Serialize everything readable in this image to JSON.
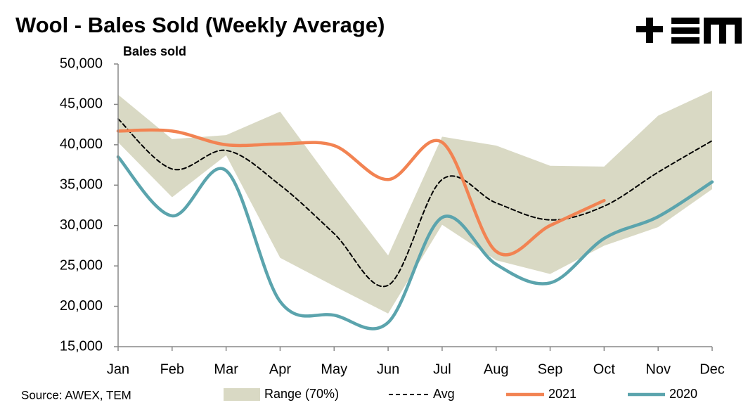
{
  "chart_data": {
    "type": "line",
    "title": "Wool - Bales Sold (Weekly Average)",
    "y_label": "Bales sold",
    "source": "Source: AWEX, TEM",
    "categories": [
      "Jan",
      "Feb",
      "Mar",
      "Apr",
      "May",
      "Jun",
      "Jul",
      "Aug",
      "Sep",
      "Oct",
      "Nov",
      "Dec"
    ],
    "ylim": [
      15000,
      50000
    ],
    "yticks": [
      {
        "value": 15000,
        "label": "15,000"
      },
      {
        "value": 20000,
        "label": "20,000"
      },
      {
        "value": 25000,
        "label": "25,000"
      },
      {
        "value": 30000,
        "label": "30,000"
      },
      {
        "value": 35000,
        "label": "35,000"
      },
      {
        "value": 40000,
        "label": "40,000"
      },
      {
        "value": 45000,
        "label": "45,000"
      },
      {
        "value": 50000,
        "label": "50,000"
      }
    ],
    "range": {
      "name": "Range (70%)",
      "color": "#d9d9c4",
      "upper": [
        46200,
        40700,
        41200,
        44100,
        35000,
        26300,
        41000,
        39900,
        37400,
        37300,
        43600,
        46700
      ],
      "lower": [
        40300,
        33500,
        38700,
        26000,
        22500,
        19100,
        30100,
        25700,
        24000,
        27500,
        29800,
        34500
      ]
    },
    "series": [
      {
        "name": "Avg",
        "color": "#000000",
        "dashed": true,
        "values": [
          43200,
          37000,
          39300,
          35000,
          29000,
          22600,
          35700,
          32800,
          30700,
          32400,
          36600,
          40500
        ]
      },
      {
        "name": "2021",
        "color": "#f28352",
        "values": [
          41700,
          41700,
          40000,
          40100,
          39900,
          35700,
          40300,
          26800,
          30000,
          33100,
          null,
          null
        ]
      },
      {
        "name": "2020",
        "color": "#5ba4ad",
        "values": [
          38500,
          31200,
          36800,
          20600,
          18900,
          18000,
          31000,
          25200,
          22900,
          28400,
          31100,
          35400
        ]
      }
    ]
  }
}
